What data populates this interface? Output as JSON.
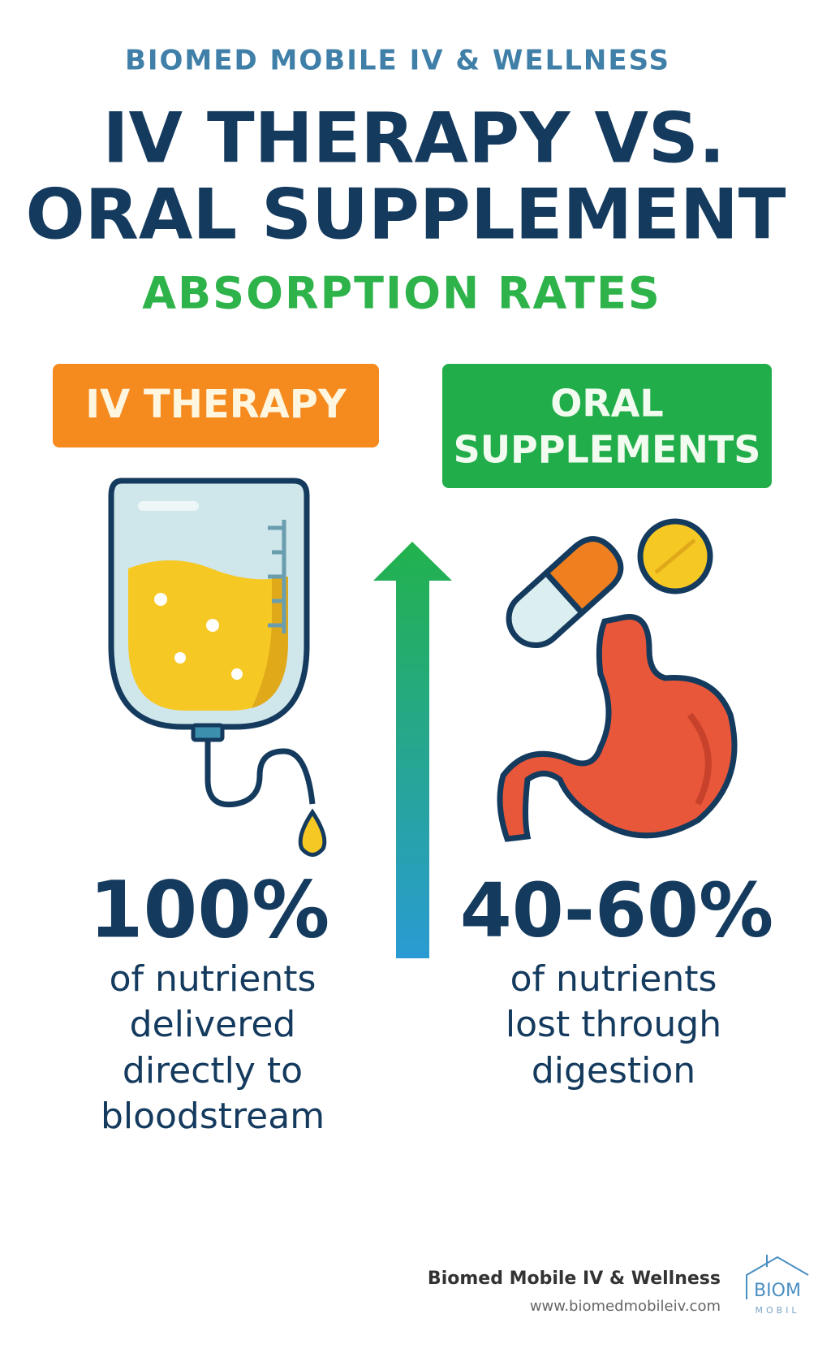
{
  "brand": "BIOMED MOBILE IV & WELLNESS",
  "title": {
    "lines": [
      "IV THERAPY VS.",
      "ORAL SUPPLEMENT"
    ]
  },
  "subtitle": "ABSORPTION RATES",
  "iv": {
    "label": "IV THERAPY",
    "stat": "100%",
    "description": [
      "of nutrients",
      "delivered",
      "directly to",
      "bloodstream"
    ]
  },
  "oral": {
    "label": [
      "ORAL",
      "SUPPLEMENTS"
    ],
    "stat": "40-60%",
    "description": [
      "of nutrients",
      "lost through",
      "digestion"
    ]
  },
  "footer": {
    "name": "Biomed Mobile IV & Wellness",
    "url": "www.biomedmobileiv.com",
    "logo": [
      "BIOM",
      "MOBIL"
    ]
  }
}
